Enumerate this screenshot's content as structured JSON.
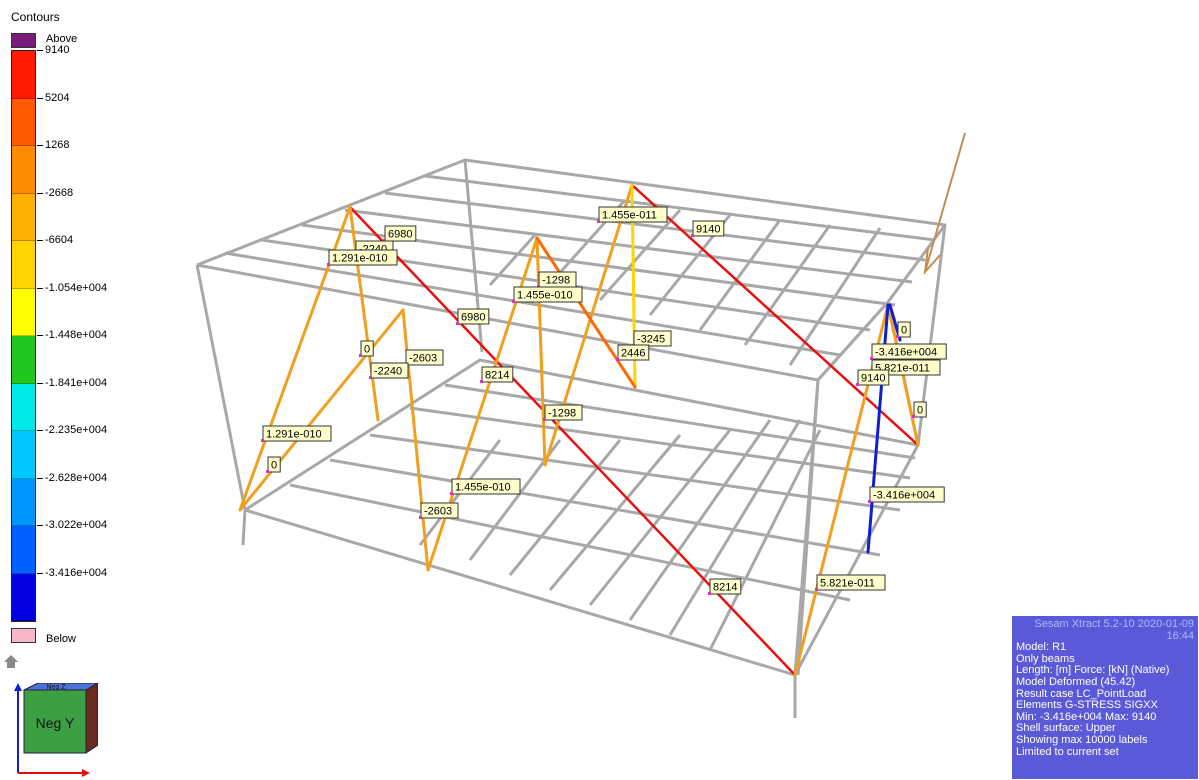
{
  "legend": {
    "title": "Contours",
    "above_label": "Above",
    "below_label": "Below",
    "above_color": "#7a1a7a",
    "below_color": "#f4b8c8",
    "ticks": [
      "9140",
      "5204",
      "1268",
      "-2668",
      "-6604",
      "-1.054e+004",
      "-1.448e+004",
      "-1.841e+004",
      "-2.235e+004",
      "-2.628e+004",
      "-3.022e+004",
      "-3.416e+004"
    ],
    "band_colors": [
      "#ff1a00",
      "#ff5a00",
      "#ff8c00",
      "#ffb000",
      "#ffd400",
      "#ffff00",
      "#1ec81e",
      "#00e8e8",
      "#00c8ff",
      "#0096ff",
      "#0060ff",
      "#0000e0"
    ]
  },
  "value_labels": [
    {
      "text": "6980"
    },
    {
      "text": "-2240"
    },
    {
      "text": "1.291e-010"
    },
    {
      "text": "1.455e-011"
    },
    {
      "text": "9140"
    },
    {
      "text": "-1298"
    },
    {
      "text": "1.455e-010"
    },
    {
      "text": "6980"
    },
    {
      "text": "-3245"
    },
    {
      "text": "2446"
    },
    {
      "text": "0"
    },
    {
      "text": "-2603"
    },
    {
      "text": "-2240"
    },
    {
      "text": "8214"
    },
    {
      "text": "-1298"
    },
    {
      "text": "1.291e-010"
    },
    {
      "text": "0"
    },
    {
      "text": "1.455e-010"
    },
    {
      "text": "-2603"
    },
    {
      "text": "8214"
    },
    {
      "text": "0"
    },
    {
      "text": "-3.416e+004"
    },
    {
      "text": "5.821e-011"
    },
    {
      "text": "9140"
    },
    {
      "text": "0"
    },
    {
      "text": "-3.416e+004"
    },
    {
      "text": "5.821e-011"
    }
  ],
  "orientation_cube": {
    "face_label": "Neg Y",
    "top_label": "Neg Z"
  },
  "info_panel": {
    "header": "Sesam Xtract 5.2-10 2020-01-09 16:44",
    "lines": [
      "Model: R1",
      "Only beams",
      "Length: [m]  Force: [kN] (Native)",
      "Model Deformed (45.42)",
      "Result case LC_PointLoad",
      "Elements G-STRESS SIGXX",
      "Min: -3.416e+004 Max: 9140",
      "Shell surface: Upper",
      "Showing max 10000 labels",
      "Limited to current set"
    ]
  },
  "colors": {
    "frame": "#a8a8a8",
    "member_red": "#e81010",
    "member_orange": "#f0a020",
    "member_blue": "#1020d0",
    "load_arrow": "#c09050",
    "label_bg": "#ffffcc"
  }
}
